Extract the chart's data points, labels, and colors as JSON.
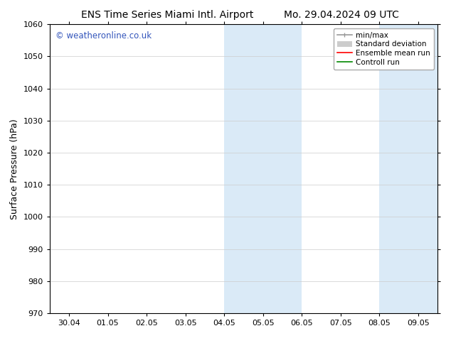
{
  "title_left": "ENS Time Series Miami Intl. Airport",
  "title_right": "Mo. 29.04.2024 09 UTC",
  "ylabel": "Surface Pressure (hPa)",
  "ylim": [
    970,
    1060
  ],
  "yticks": [
    970,
    980,
    990,
    1000,
    1010,
    1020,
    1030,
    1040,
    1050,
    1060
  ],
  "xtick_labels": [
    "30.04",
    "01.05",
    "02.05",
    "03.05",
    "04.05",
    "05.05",
    "06.05",
    "07.05",
    "08.05",
    "09.05"
  ],
  "xtick_positions": [
    0,
    1,
    2,
    3,
    4,
    5,
    6,
    7,
    8,
    9
  ],
  "xlim": [
    -0.5,
    9.5
  ],
  "shaded_bands": [
    {
      "xstart": 4.0,
      "xend": 6.0
    },
    {
      "xstart": 8.0,
      "xend": 9.5
    }
  ],
  "shade_color": "#daeaf7",
  "watermark": "© weatheronline.co.uk",
  "watermark_color": "#3355bb",
  "bg_color": "#ffffff",
  "font_size_title": 10,
  "font_size_tick": 8,
  "font_size_ylabel": 9,
  "font_size_legend": 7.5,
  "font_size_watermark": 8.5,
  "legend_minmax_color": "#999999",
  "legend_std_color": "#cccccc",
  "legend_ens_color": "#ff0000",
  "legend_ctrl_color": "#008800"
}
